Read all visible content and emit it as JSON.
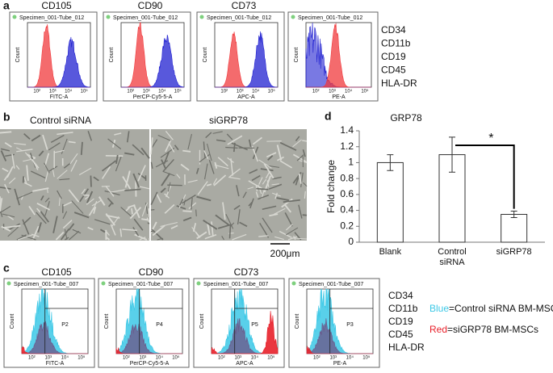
{
  "panel_a": {
    "label": "a",
    "plots": [
      {
        "title": "CD105",
        "specimen": "Specimen_001-Tube_012",
        "y_label": "Count",
        "x_label": "FITC-A"
      },
      {
        "title": "CD90",
        "specimen": "Specimen_001-Tube_012",
        "y_label": "Count",
        "x_label": "PerCP-Cy5-5-A"
      },
      {
        "title": "CD73",
        "specimen": "Specimen_001-Tube_012",
        "y_label": "Count",
        "x_label": "APC-A"
      },
      {
        "specimen": "Specimen_001-Tube_012",
        "y_label": "Count",
        "x_label": "PE-A"
      }
    ],
    "markers": [
      "CD34",
      "CD11b",
      "CD19",
      "CD45",
      "HLA-DR"
    ]
  },
  "log_ticks": [
    "10²",
    "10³",
    "10⁴",
    "10⁵"
  ],
  "panel_b": {
    "label": "b",
    "captions": [
      "Control siRNA",
      "siGRP78"
    ],
    "scale_bar": "200μm"
  },
  "panel_c": {
    "label": "c",
    "plots": [
      {
        "title": "CD105",
        "specimen": "Specimen_001-Tube_007",
        "y_label": "Count",
        "x_label": "FITC-A",
        "gate": "P2"
      },
      {
        "title": "CD90",
        "specimen": "Specimen_001-Tube_007",
        "y_label": "Count",
        "x_label": "PerCP-Cy5-5-A",
        "gate": "P4"
      },
      {
        "title": "CD73",
        "specimen": "Specimen_001-Tube_007",
        "y_label": "Count",
        "x_label": "APC-A",
        "gate": "P5"
      },
      {
        "specimen": "Specimen_001-Tube_007",
        "y_label": "Count",
        "x_label": "PE-A",
        "gate": "P3"
      }
    ],
    "markers": [
      "CD34",
      "CD11b",
      "CD19",
      "CD45",
      "HLA-DR"
    ],
    "legend": [
      {
        "color_word": "Blue",
        "text": "=Control siRNA BM-MSCs",
        "color": "#3cc8e6"
      },
      {
        "color_word": "Red",
        "text": "=siGRP78 BM-MSCs",
        "color": "#e8202a"
      }
    ]
  },
  "chart_data": {
    "type": "bar",
    "panel_label": "d",
    "title": "GRP78",
    "y_label": "Fold change",
    "categories": [
      "Blank",
      "Control siRNA",
      "siGRP78"
    ],
    "values": [
      1.0,
      1.1,
      0.35
    ],
    "errors": [
      0.1,
      0.22,
      0.04
    ],
    "color": "#ffffff",
    "ylim": [
      0,
      1.4
    ],
    "yticks": [
      0,
      0.2,
      0.4,
      0.6,
      0.8,
      1,
      1.2,
      1.4
    ],
    "annotation": "*"
  }
}
